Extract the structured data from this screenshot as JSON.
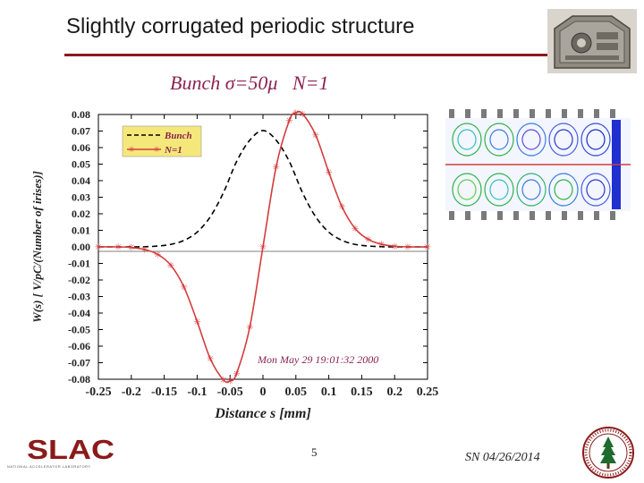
{
  "slide": {
    "title": "Slightly corrugated periodic structure",
    "page_number": "5",
    "footer_date": "SN 04/26/2014",
    "logo_text": "SLAC",
    "logo_caption": "NATIONAL ACCELERATOR LABORATORY",
    "colors": {
      "title_rule": "#8b1a1a",
      "logo": "#8b1a1a",
      "seal": "#8b1a1a"
    }
  },
  "chart_data": {
    "type": "line",
    "title": "Bunch σ=50μ   N=1",
    "xlabel": "Distance s [mm]",
    "ylabel": "W(s) [ V/pC/(Number of irises)]",
    "xlim": [
      -0.25,
      0.25
    ],
    "ylim": [
      -0.08,
      0.08
    ],
    "x_ticks": [
      "-0.25",
      "-0.2",
      "-0.15",
      "-0.1",
      "-0.05",
      "0",
      "0.05",
      "0.1",
      "0.15",
      "0.2",
      "0.25"
    ],
    "y_ticks": [
      "0.08",
      "0.07",
      "0.06",
      "0.05",
      "0.04",
      "0.03",
      "0.02",
      "0.01",
      "0.00",
      "-0.01",
      "-0.02",
      "-0.03",
      "-0.04",
      "-0.05",
      "-0.06",
      "-0.07",
      "-0.08"
    ],
    "legend_position": "top-left",
    "annotation": "Mon May 29 19:01:32 2000",
    "series": [
      {
        "name": "Bunch",
        "style": "dashed",
        "color": "#000000",
        "x": [
          -0.25,
          -0.2,
          -0.18,
          -0.16,
          -0.14,
          -0.12,
          -0.1,
          -0.08,
          -0.06,
          -0.04,
          -0.02,
          0,
          0.02,
          0.04,
          0.06,
          0.08,
          0.1,
          0.12,
          0.14,
          0.16,
          0.18,
          0.2,
          0.25
        ],
        "y": [
          0.0,
          0.0,
          0.0001,
          0.0005,
          0.0015,
          0.0039,
          0.0089,
          0.0182,
          0.0328,
          0.0516,
          0.0645,
          0.0703,
          0.0645,
          0.0516,
          0.0328,
          0.0182,
          0.0089,
          0.0039,
          0.0015,
          0.0005,
          0.0001,
          0.0,
          0.0
        ]
      },
      {
        "name": "N=1",
        "style": "solid-star",
        "color": "#d43c3c",
        "x": [
          -0.25,
          -0.22,
          -0.2,
          -0.18,
          -0.16,
          -0.14,
          -0.12,
          -0.1,
          -0.08,
          -0.06,
          -0.05,
          -0.04,
          -0.02,
          0,
          0.02,
          0.04,
          0.05,
          0.06,
          0.08,
          0.1,
          0.12,
          0.14,
          0.16,
          0.18,
          0.2,
          0.22,
          0.25
        ],
        "y": [
          0.0,
          0.0,
          -0.0004,
          -0.0016,
          -0.0045,
          -0.0111,
          -0.0243,
          -0.0451,
          -0.0676,
          -0.0804,
          -0.081,
          -0.0764,
          -0.0484,
          0.0,
          0.0484,
          0.0764,
          0.081,
          0.0804,
          0.0676,
          0.0451,
          0.0243,
          0.0111,
          0.0045,
          0.0016,
          0.0004,
          0.0,
          0.0
        ]
      }
    ]
  }
}
